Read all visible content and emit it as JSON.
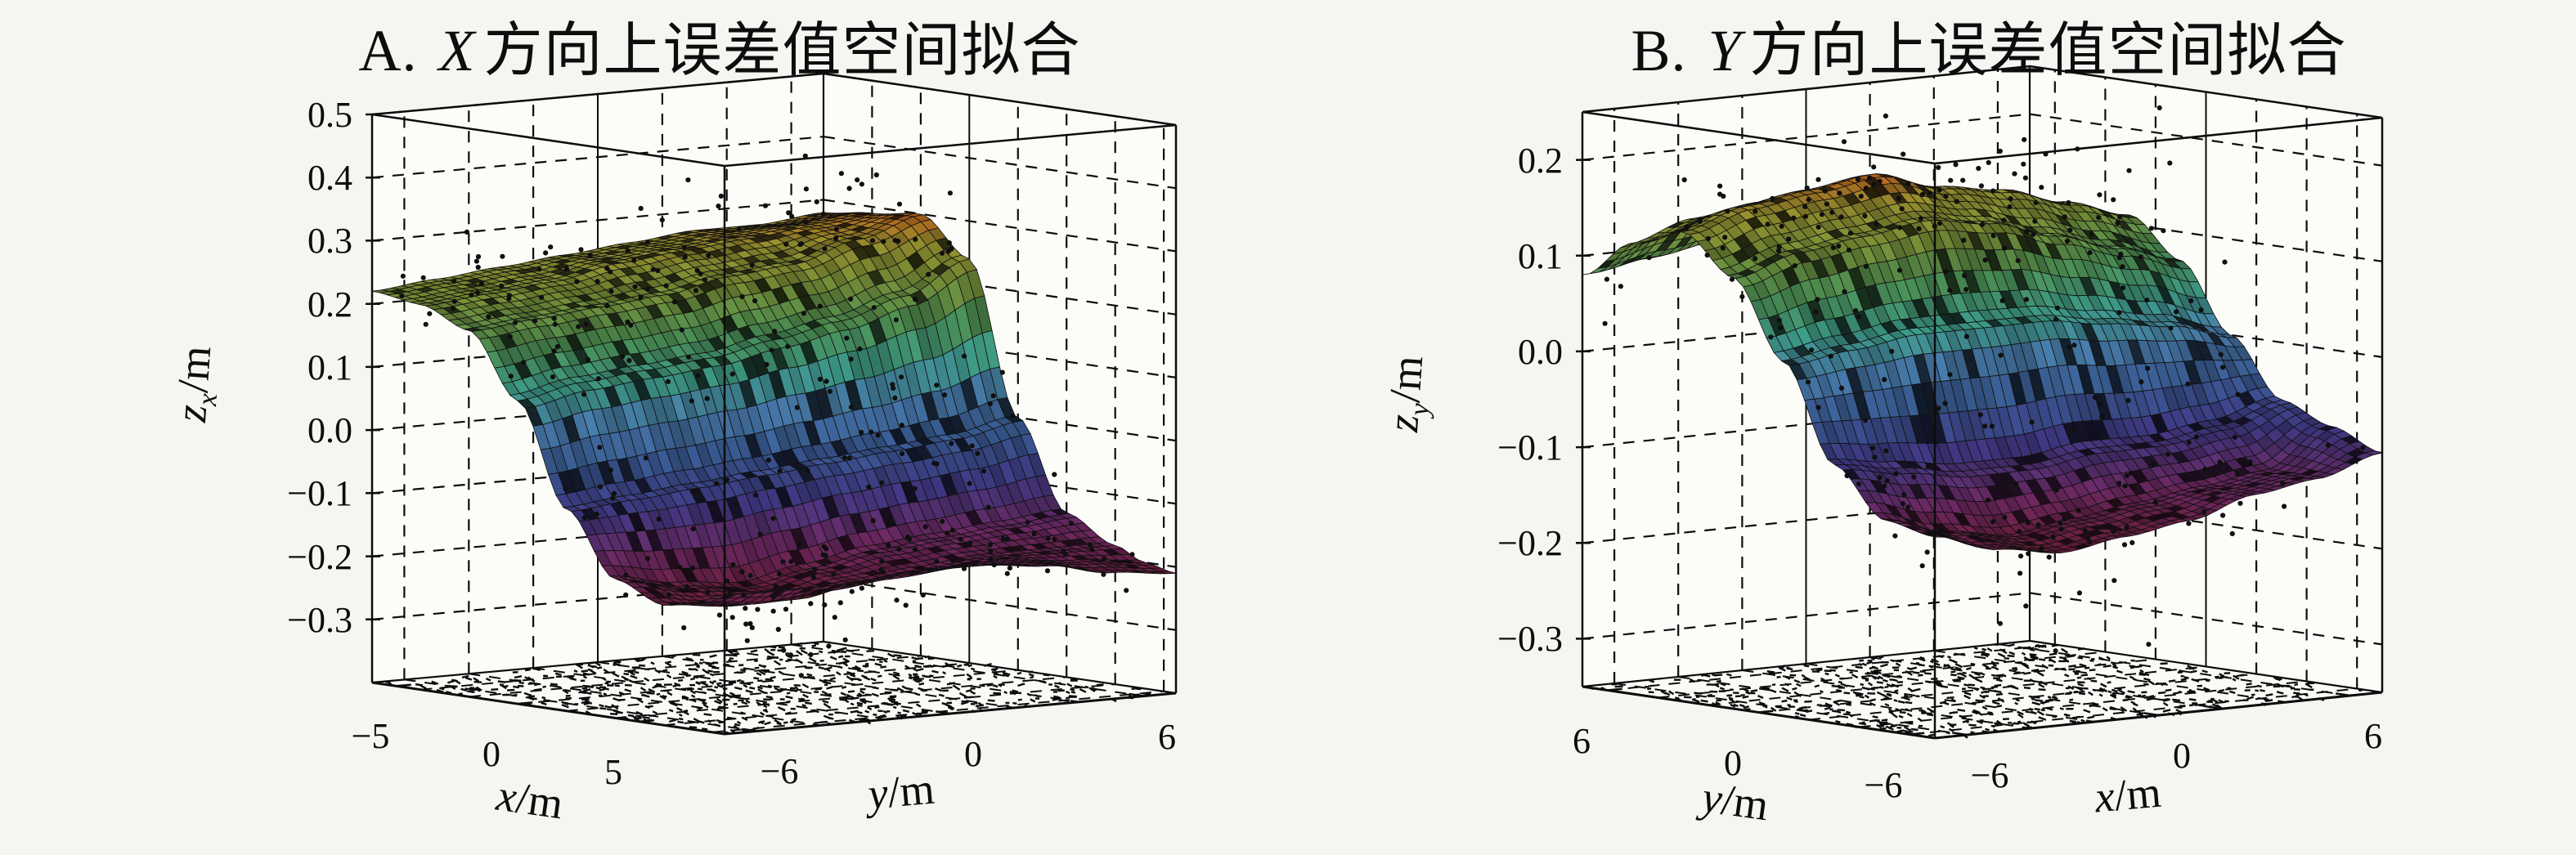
{
  "page": {
    "background_color": "#f5f5f2",
    "ink_color": "#111111"
  },
  "panels": [
    {
      "panel_label": "A.",
      "title_variable": "X",
      "title_text": "方向上误差值空间拟合",
      "x_axis": {
        "label_variable": "x",
        "label_unit": "/m",
        "tick_labels": [
          "−5",
          "0",
          "5"
        ],
        "tick_values": [
          -5,
          0,
          5
        ],
        "range": [
          -6,
          8.5
        ]
      },
      "y_axis": {
        "label_variable": "y",
        "label_unit": "/m",
        "tick_labels": [
          "−6",
          "0",
          "6"
        ],
        "tick_values": [
          -6,
          0,
          6
        ],
        "range": [
          -7,
          7
        ]
      },
      "z_axis": {
        "label_variable": "z",
        "label_subscript": "x",
        "label_unit": "/m",
        "tick_labels": [
          "0.5",
          "0.4",
          "0.3",
          "0.2",
          "0.1",
          "0.0",
          "−0.1",
          "−0.2",
          "−0.3"
        ],
        "tick_values": [
          0.5,
          0.4,
          0.3,
          0.2,
          0.1,
          0.0,
          -0.1,
          -0.2,
          -0.3
        ],
        "range": [
          -0.4,
          0.5
        ]
      },
      "chart_data": {
        "type": "surface",
        "description": "Fitted error-value surface in X direction with residual scatter points",
        "grid_x": [
          -6,
          -4,
          -2,
          0,
          2,
          4,
          6,
          7.2,
          8.5
        ],
        "grid_y": [
          -7,
          -5,
          -3,
          -1,
          1,
          3,
          5,
          7
        ],
        "z_values": [
          [
            0.22,
            0.21,
            0.18,
            0.08,
            -0.08,
            -0.18,
            -0.21,
            -0.2,
            -0.18
          ],
          [
            0.23,
            0.22,
            0.19,
            0.1,
            -0.07,
            -0.2,
            -0.22,
            -0.21,
            -0.18
          ],
          [
            0.24,
            0.23,
            0.2,
            0.11,
            -0.06,
            -0.21,
            -0.22,
            -0.2,
            -0.18
          ],
          [
            0.25,
            0.25,
            0.21,
            0.12,
            -0.05,
            -0.19,
            -0.2,
            -0.19,
            -0.17
          ],
          [
            0.26,
            0.26,
            0.23,
            0.14,
            -0.04,
            -0.17,
            -0.19,
            -0.18,
            -0.17
          ],
          [
            0.27,
            0.27,
            0.24,
            0.16,
            -0.03,
            -0.16,
            -0.18,
            -0.18,
            -0.18
          ],
          [
            0.27,
            0.28,
            0.27,
            0.19,
            -0.02,
            -0.15,
            -0.18,
            -0.19,
            -0.2
          ],
          [
            0.28,
            0.29,
            0.3,
            0.24,
            0.0,
            -0.14,
            -0.18,
            -0.2,
            -0.21
          ]
        ],
        "scatter": {
          "marker": "dot",
          "color": "#101010",
          "count": 260,
          "noise_sd": 0.045
        },
        "colormap_stops": [
          [
            0.0,
            "#6e1e3c"
          ],
          [
            0.12,
            "#722a66"
          ],
          [
            0.25,
            "#433a8a"
          ],
          [
            0.38,
            "#3c5f9c"
          ],
          [
            0.5,
            "#4a80b0"
          ],
          [
            0.6,
            "#3fa08c"
          ],
          [
            0.72,
            "#4f9454"
          ],
          [
            0.84,
            "#7e9437"
          ],
          [
            0.93,
            "#9c9430"
          ],
          [
            1.0,
            "#c2691e"
          ]
        ]
      }
    },
    {
      "panel_label": "B.",
      "title_variable": "Y",
      "title_text": "方向上误差值空间拟合",
      "x_axis": {
        "label_variable": "x",
        "label_unit": "/m",
        "tick_labels": [
          "−6",
          "0",
          "6"
        ],
        "tick_values": [
          -6,
          0,
          6
        ],
        "range": [
          -7,
          7
        ]
      },
      "y_axis": {
        "label_variable": "y",
        "label_unit": "/m",
        "tick_labels": [
          "6",
          "0",
          "−6"
        ],
        "tick_values": [
          6,
          0,
          -6
        ],
        "range": [
          -7,
          7
        ]
      },
      "z_axis": {
        "label_variable": "z",
        "label_subscript": "y",
        "label_unit": "/m",
        "tick_labels": [
          "0.2",
          "0.1",
          "0.0",
          "−0.1",
          "−0.2",
          "−0.3"
        ],
        "tick_values": [
          0.2,
          0.1,
          0.0,
          -0.1,
          -0.2,
          -0.3
        ],
        "range": [
          -0.35,
          0.25
        ]
      },
      "chart_data": {
        "type": "surface",
        "description": "Fitted error-value surface in Y direction with residual scatter points",
        "grid_x": [
          -7,
          -5,
          -3,
          -1,
          1,
          3,
          5,
          7
        ],
        "grid_y": [
          7,
          5,
          3,
          1,
          -1,
          -3,
          -5,
          -7
        ],
        "z_values": [
          [
            0.08,
            0.09,
            0.1,
            0.1,
            0.1,
            0.09,
            0.08,
            0.07
          ],
          [
            0.12,
            0.14,
            0.15,
            0.15,
            0.14,
            0.13,
            0.12,
            0.1
          ],
          [
            0.14,
            0.16,
            0.17,
            0.18,
            0.16,
            0.15,
            0.13,
            0.11
          ],
          [
            0.1,
            0.12,
            0.13,
            0.14,
            0.13,
            0.11,
            0.09,
            0.07
          ],
          [
            0.02,
            0.03,
            0.04,
            0.04,
            0.04,
            0.03,
            0.02,
            0.0
          ],
          [
            -0.08,
            -0.09,
            -0.1,
            -0.1,
            -0.09,
            -0.09,
            -0.08,
            -0.06
          ],
          [
            -0.13,
            -0.15,
            -0.16,
            -0.15,
            -0.14,
            -0.13,
            -0.12,
            -0.08
          ],
          [
            -0.14,
            -0.16,
            -0.17,
            -0.16,
            -0.15,
            -0.13,
            -0.12,
            -0.1
          ]
        ],
        "scatter": {
          "marker": "dot",
          "color": "#101010",
          "count": 230,
          "noise_sd": 0.04
        },
        "colormap_stops": [
          [
            0.0,
            "#6e1e3c"
          ],
          [
            0.12,
            "#722a66"
          ],
          [
            0.25,
            "#433a8a"
          ],
          [
            0.38,
            "#3c5f9c"
          ],
          [
            0.5,
            "#4a80b0"
          ],
          [
            0.6,
            "#3fa08c"
          ],
          [
            0.72,
            "#4f9454"
          ],
          [
            0.84,
            "#7e9437"
          ],
          [
            0.93,
            "#9c9430"
          ],
          [
            1.0,
            "#c2691e"
          ]
        ]
      }
    }
  ]
}
